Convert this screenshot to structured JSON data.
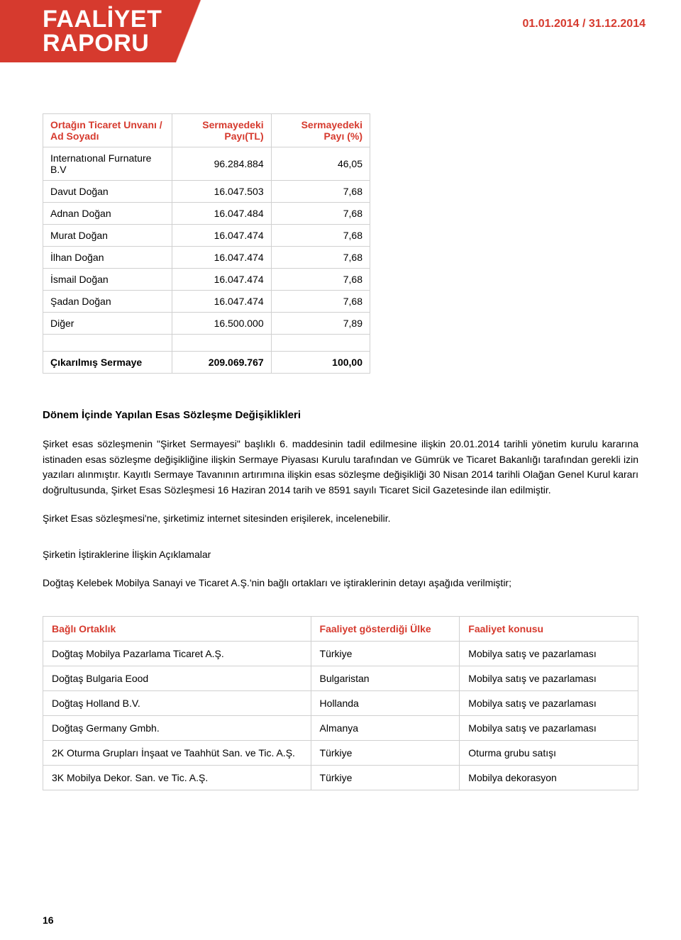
{
  "header": {
    "title_line1": "FAALİYET",
    "title_line2": "RAPORU",
    "date_range": "01.01.2014 / 31.12.2014"
  },
  "shareholders": {
    "columns": {
      "name": "Ortağın Ticaret Unvanı / Ad Soyadı",
      "tl": "Sermayedeki Payı(TL)",
      "pct": "Sermayedeki Payı (%)"
    },
    "rows": [
      {
        "name": "Internatıonal Furnature B.V",
        "tl": "96.284.884",
        "pct": "46,05"
      },
      {
        "name": "Davut Doğan",
        "tl": "16.047.503",
        "pct": "7,68"
      },
      {
        "name": "Adnan Doğan",
        "tl": "16.047.484",
        "pct": "7,68"
      },
      {
        "name": "Murat Doğan",
        "tl": "16.047.474",
        "pct": "7,68"
      },
      {
        "name": "İlhan Doğan",
        "tl": "16.047.474",
        "pct": "7,68"
      },
      {
        "name": "İsmail Doğan",
        "tl": "16.047.474",
        "pct": "7,68"
      },
      {
        "name": "Şadan Doğan",
        "tl": "16.047.474",
        "pct": "7,68"
      },
      {
        "name": "Diğer",
        "tl": "16.500.000",
        "pct": "7,89"
      }
    ],
    "footer": {
      "name": "Çıkarılmış Sermaye",
      "tl": "209.069.767",
      "pct": "100,00"
    }
  },
  "section1": {
    "heading": "Dönem İçinde Yapılan Esas Sözleşme Değişiklikleri",
    "p1": "Şirket esas sözleşmenin \"Şirket Sermayesi\" başlıklı 6. maddesinin tadil edilmesine ilişkin 20.01.2014 tarihli yönetim kurulu kararına istinaden esas sözleşme değişikliğine ilişkin Sermaye Piyasası Kurulu tarafından ve Gümrük ve Ticaret Bakanlığı tarafından gerekli izin yazıları alınmıştır. Kayıtlı Sermaye Tavanının artırımına ilişkin esas sözleşme değişikliği 30 Nisan 2014 tarihli Olağan Genel Kurul kararı doğrultusunda, Şirket Esas Sözleşmesi 16 Haziran 2014 tarih ve 8591 sayılı Ticaret Sicil Gazetesinde ilan edilmiştir.",
    "p2": "Şirket Esas sözleşmesi'ne, şirketimiz internet sitesinden erişilerek, incelenebilir.",
    "p3": "Şirketin İştiraklerine İlişkin Açıklamalar",
    "p4": "Doğtaş Kelebek Mobilya Sanayi ve Ticaret A.Ş.'nin bağlı ortakları ve iştiraklerinin detayı aşağıda verilmiştir;"
  },
  "subsidiary": {
    "columns": {
      "name": "Bağlı Ortaklık",
      "country": "Faaliyet gösterdiği Ülke",
      "activity": "Faaliyet konusu"
    },
    "rows": [
      {
        "name": "Doğtaş Mobilya Pazarlama Ticaret A.Ş.",
        "country": "Türkiye",
        "activity": "Mobilya satış ve pazarlaması"
      },
      {
        "name": "Doğtaş Bulgaria Eood",
        "country": "Bulgaristan",
        "activity": "Mobilya satış ve pazarlaması"
      },
      {
        "name": "Doğtaş Holland B.V.",
        "country": "Hollanda",
        "activity": "Mobilya satış ve pazarlaması"
      },
      {
        "name": "Doğtaş Germany Gmbh.",
        "country": "Almanya",
        "activity": "Mobilya satış ve pazarlaması"
      },
      {
        "name": "2K Oturma Grupları İnşaat ve Taahhüt San. ve Tic. A.Ş.",
        "country": "Türkiye",
        "activity": "Oturma grubu satışı"
      },
      {
        "name": "3K Mobilya Dekor. San. ve Tic. A.Ş.",
        "country": "Türkiye",
        "activity": "Mobilya dekorasyon"
      }
    ]
  },
  "page_number": "16"
}
